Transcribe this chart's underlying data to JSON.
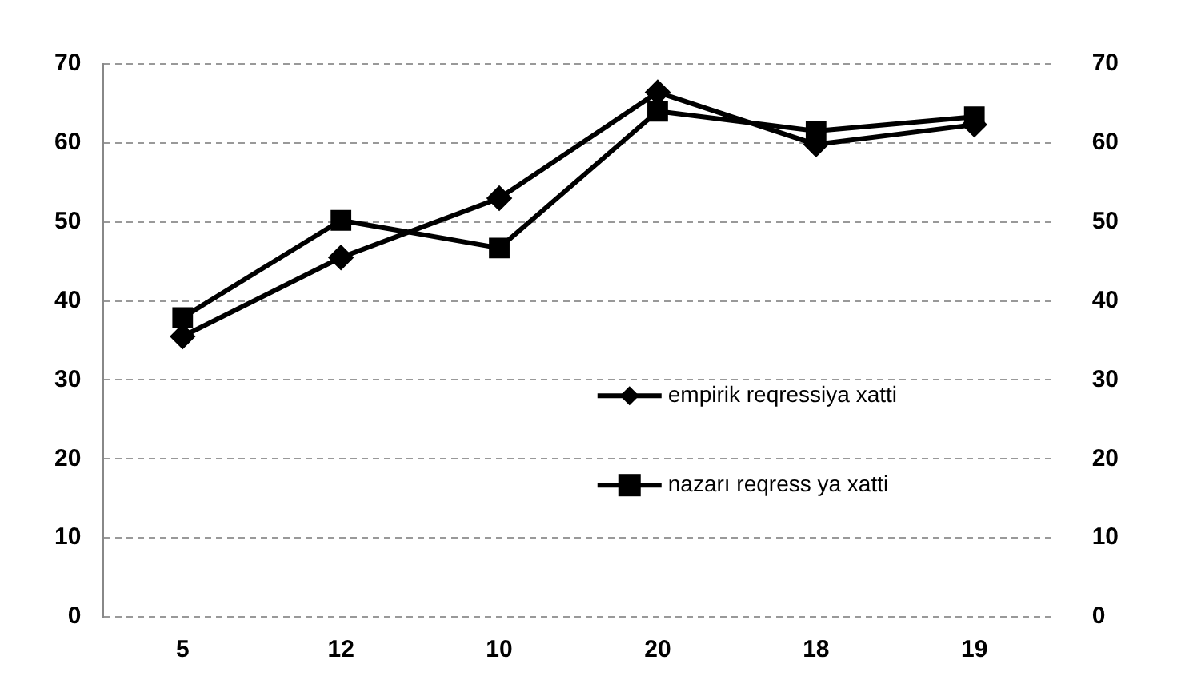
{
  "chart_data": {
    "type": "line",
    "categories": [
      "5",
      "12",
      "10",
      "20",
      "18",
      "19"
    ],
    "series": [
      {
        "name": "empirik reqressiya xatti",
        "color": "#000000",
        "marker": "diamond",
        "values": [
          35.5,
          45.5,
          53,
          66.4,
          59.8,
          62.3
        ]
      },
      {
        "name": "nazarı reqress ya xatti",
        "color": "#000000",
        "marker": "square",
        "values": [
          37.9,
          50.2,
          46.7,
          64,
          61.5,
          63.3
        ]
      }
    ],
    "ylim": [
      0,
      70
    ],
    "yticks": [
      0,
      10,
      20,
      30,
      40,
      50,
      60,
      70
    ],
    "y2lim": [
      0,
      70
    ],
    "y2ticks": [
      0,
      10,
      20,
      30,
      40,
      50,
      60,
      70
    ],
    "grid": "y",
    "legend": "right",
    "line_style": "solid"
  }
}
